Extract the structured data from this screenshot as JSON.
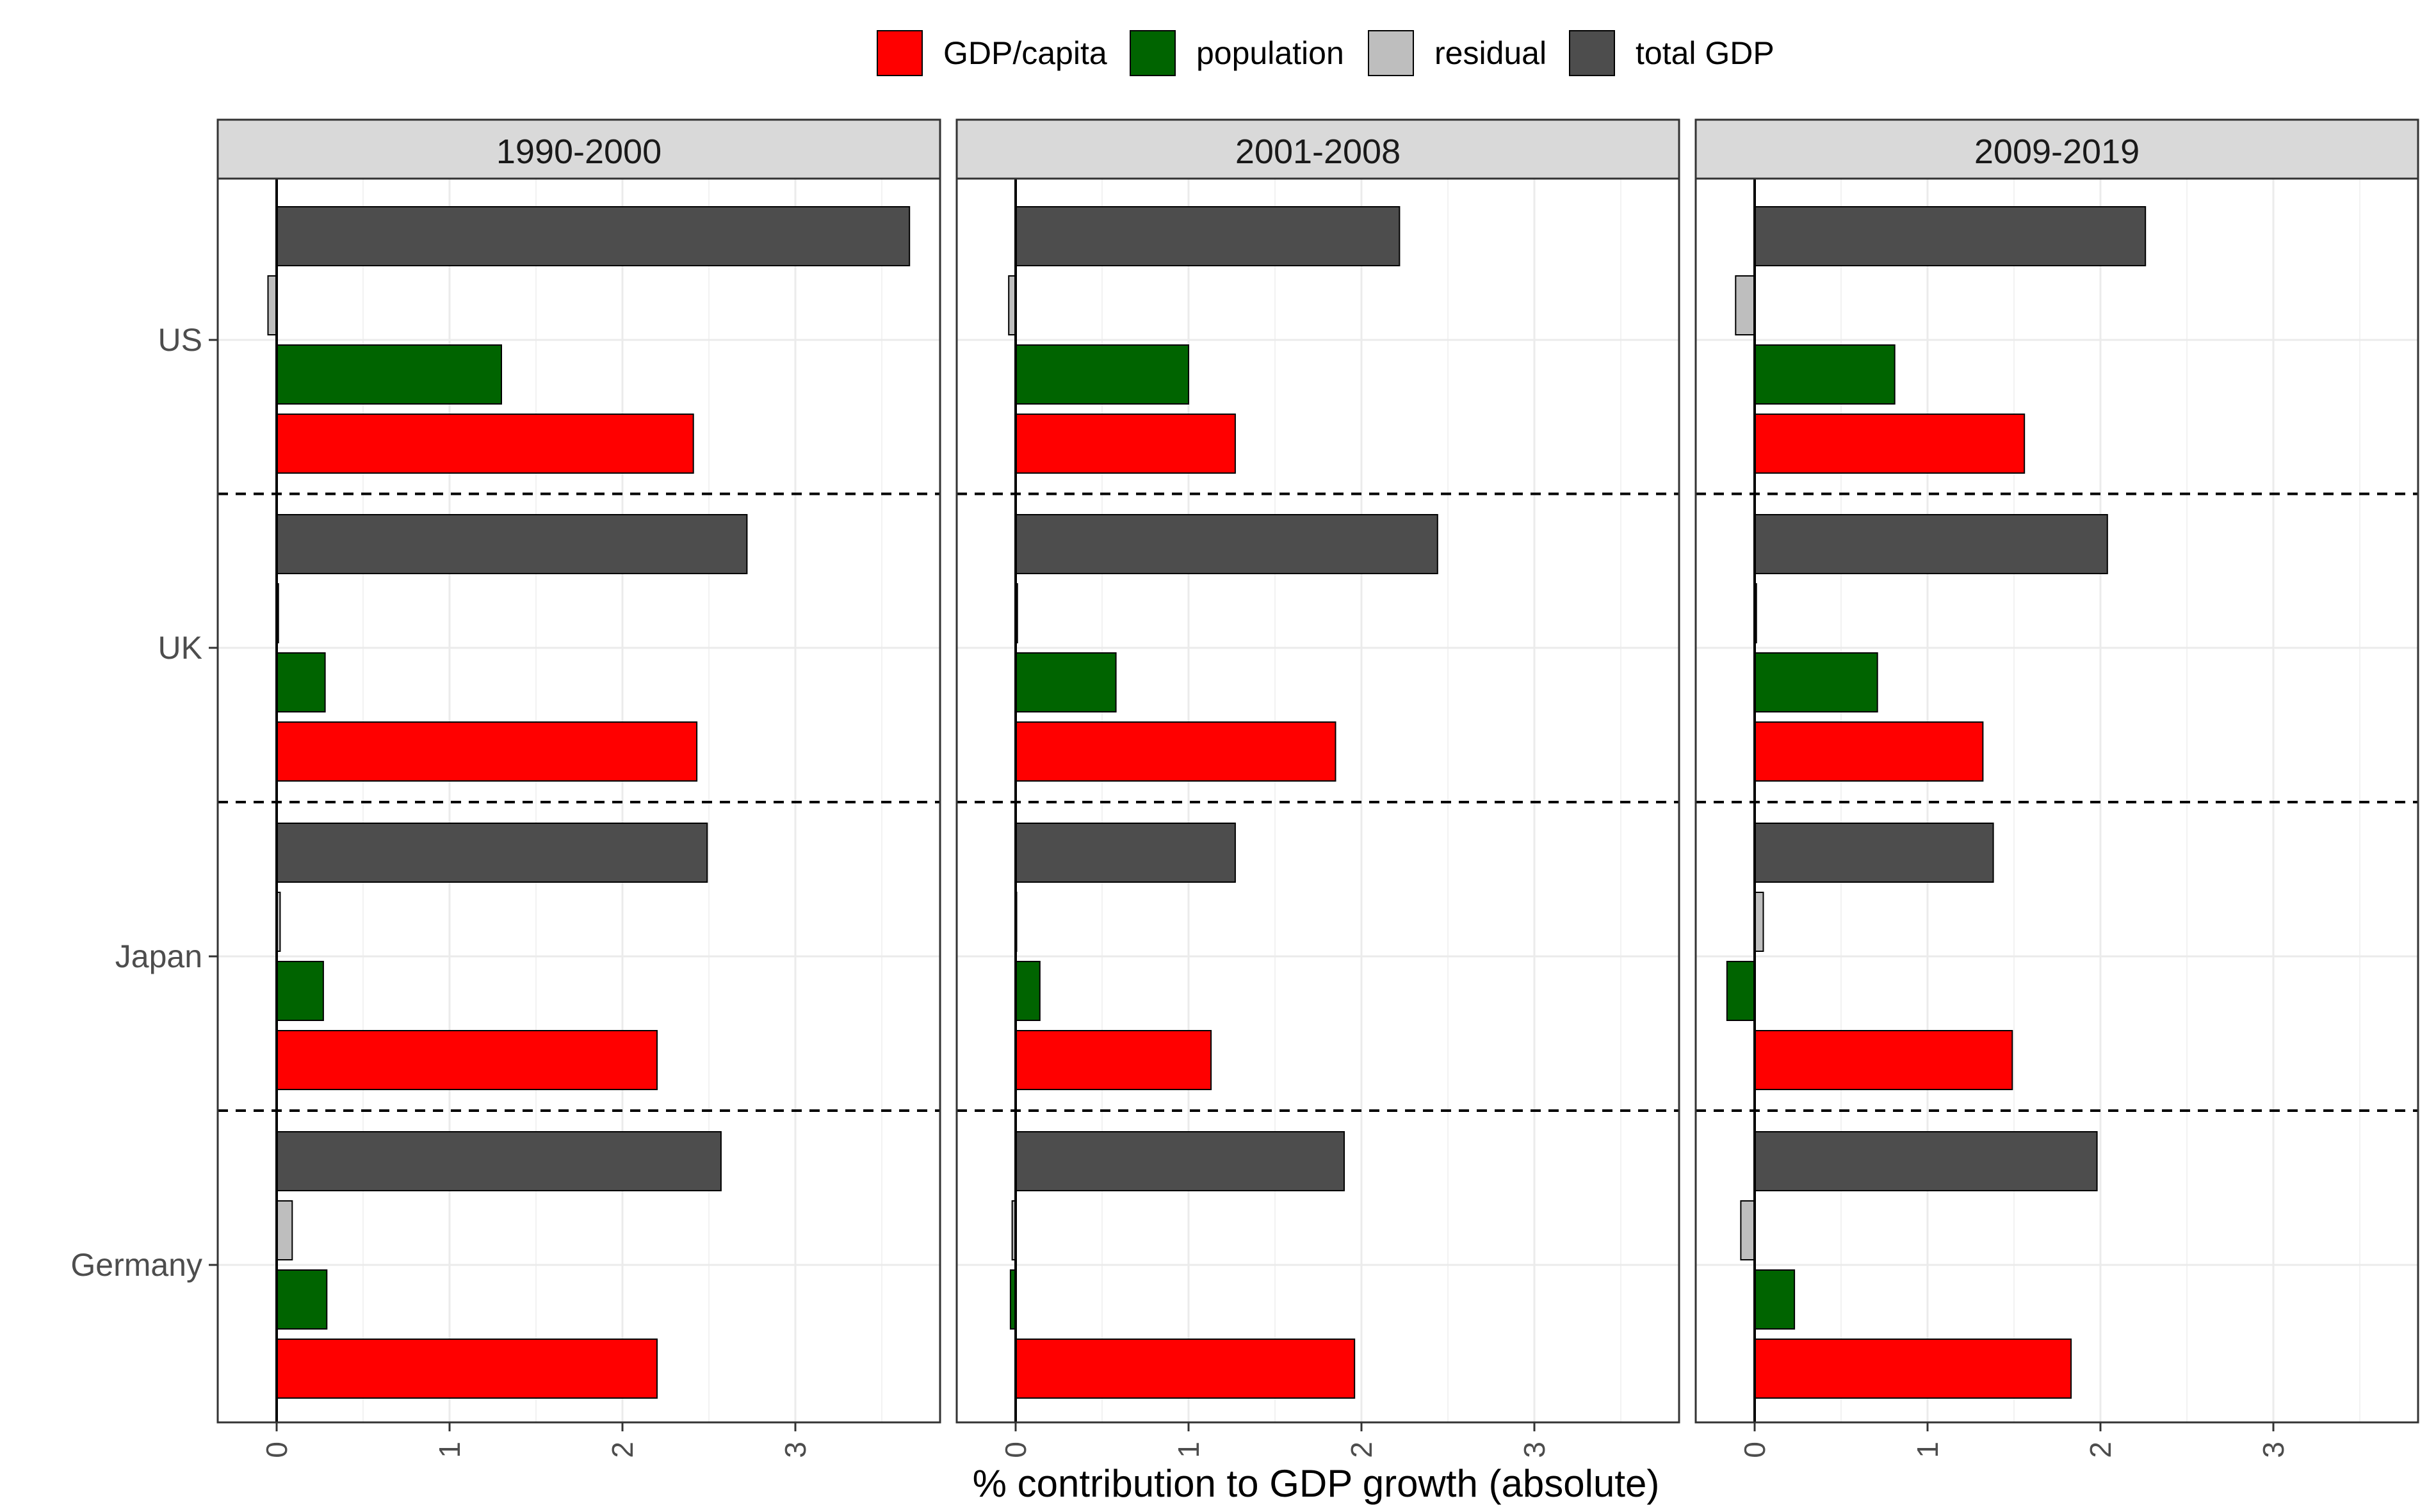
{
  "chart_data": {
    "type": "bar",
    "orientation": "horizontal",
    "xlabel": "% contribution to GDP growth (absolute)",
    "ylabel": "",
    "legend_position": "top",
    "grid": true,
    "facet_separator": "dashed",
    "xlim": [
      -0.35,
      3.85
    ],
    "x_ticks": [
      0,
      1,
      2,
      3
    ],
    "categories": [
      "US",
      "UK",
      "Japan",
      "Germany"
    ],
    "series": [
      {
        "key": "gdp_capita",
        "name": "GDP/capita",
        "color": "#FF0000"
      },
      {
        "key": "population",
        "name": "population",
        "color": "#006400"
      },
      {
        "key": "residual",
        "name": "residual",
        "color": "#BEBEBE"
      },
      {
        "key": "total_gdp",
        "name": "total GDP",
        "color": "#4D4D4D"
      }
    ],
    "panels": [
      {
        "title": "1990-2000",
        "values": {
          "US": {
            "gdp_capita": 2.41,
            "population": 1.3,
            "residual": -0.05,
            "total_gdp": 3.66
          },
          "UK": {
            "gdp_capita": 2.43,
            "population": 0.28,
            "residual": 0.01,
            "total_gdp": 2.72
          },
          "Japan": {
            "gdp_capita": 2.2,
            "population": 0.27,
            "residual": 0.02,
            "total_gdp": 2.49
          },
          "Germany": {
            "gdp_capita": 2.2,
            "population": 0.29,
            "residual": 0.09,
            "total_gdp": 2.57
          }
        }
      },
      {
        "title": "2001-2008",
        "values": {
          "US": {
            "gdp_capita": 1.27,
            "population": 1.0,
            "residual": -0.04,
            "total_gdp": 2.22
          },
          "UK": {
            "gdp_capita": 1.85,
            "population": 0.58,
            "residual": 0.01,
            "total_gdp": 2.44
          },
          "Japan": {
            "gdp_capita": 1.13,
            "population": 0.14,
            "residual": 0.0,
            "total_gdp": 1.27
          },
          "Germany": {
            "gdp_capita": 1.96,
            "population": -0.03,
            "residual": -0.02,
            "total_gdp": 1.9
          }
        }
      },
      {
        "title": "2009-2019",
        "values": {
          "US": {
            "gdp_capita": 1.56,
            "population": 0.81,
            "residual": -0.11,
            "total_gdp": 2.26
          },
          "UK": {
            "gdp_capita": 1.32,
            "population": 0.71,
            "residual": 0.01,
            "total_gdp": 2.04
          },
          "Japan": {
            "gdp_capita": 1.49,
            "population": -0.16,
            "residual": 0.05,
            "total_gdp": 1.38
          },
          "Germany": {
            "gdp_capita": 1.83,
            "population": 0.23,
            "residual": -0.08,
            "total_gdp": 1.98
          }
        }
      }
    ]
  }
}
